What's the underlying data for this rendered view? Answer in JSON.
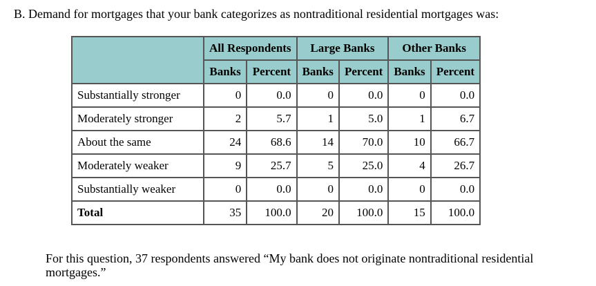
{
  "question": "B. Demand for mortgages that your bank categorizes as nontraditional residential mortgages was:",
  "table": {
    "groups": [
      "All Respondents",
      "Large Banks",
      "Other Banks"
    ],
    "subheaders": [
      "Banks",
      "Percent",
      "Banks",
      "Percent",
      "Banks",
      "Percent"
    ],
    "rows": [
      {
        "label": "Substantially stronger",
        "values": [
          "0",
          "0.0",
          "0",
          "0.0",
          "0",
          "0.0"
        ]
      },
      {
        "label": "Moderately stronger",
        "values": [
          "2",
          "5.7",
          "1",
          "5.0",
          "1",
          "6.7"
        ]
      },
      {
        "label": "About the same",
        "values": [
          "24",
          "68.6",
          "14",
          "70.0",
          "10",
          "66.7"
        ]
      },
      {
        "label": "Moderately weaker",
        "values": [
          "9",
          "25.7",
          "5",
          "25.0",
          "4",
          "26.7"
        ]
      },
      {
        "label": "Substantially weaker",
        "values": [
          "0",
          "0.0",
          "0",
          "0.0",
          "0",
          "0.0"
        ]
      },
      {
        "label": "Total",
        "values": [
          "35",
          "100.0",
          "20",
          "100.0",
          "15",
          "100.0"
        ]
      }
    ]
  },
  "note": "For this question, 37 respondents answered “My bank does not originate nontraditional residential mortgages.”",
  "colors": {
    "header_bg": "#99cccc"
  }
}
